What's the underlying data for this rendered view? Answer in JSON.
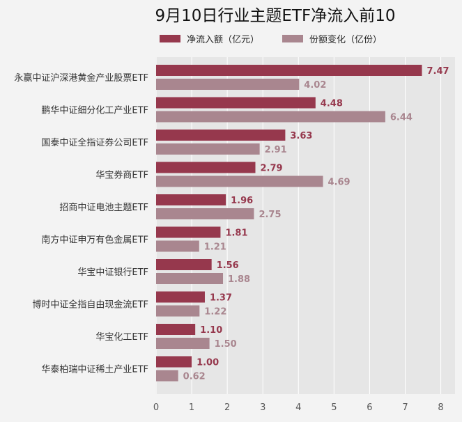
{
  "colors": {
    "series1": "#96384d",
    "series2": "#a9868f",
    "plot_bg": "#e6e6e6",
    "page_bg": "#f3f3f3",
    "grid": "#ffffff"
  },
  "chart_data": {
    "type": "bar",
    "orientation": "horizontal",
    "title": "9月10日行业主题ETF净流入前10",
    "legend_position": "top",
    "grid": true,
    "xlim": [
      0,
      8.4
    ],
    "xticks": [
      "0",
      "1",
      "2",
      "3",
      "4",
      "5",
      "6",
      "7",
      "8"
    ],
    "categories": [
      "永赢中证沪深港黄金产业股票ETF",
      "鹏华中证细分化工产业ETF",
      "国泰中证全指证券公司ETF",
      "华宝券商ETF",
      "招商中证电池主题ETF",
      "南方中证申万有色金属ETF",
      "华宝中证银行ETF",
      "博时中证全指自由现金流ETF",
      "华宝化工ETF",
      "华泰柏瑞中证稀土产业ETF"
    ],
    "series": [
      {
        "name": "净流入额（亿元）",
        "values": [
          7.47,
          4.48,
          3.63,
          2.79,
          1.96,
          1.81,
          1.56,
          1.37,
          1.1,
          1.0
        ],
        "labels": [
          "7.47",
          "4.48",
          "3.63",
          "2.79",
          "1.96",
          "1.81",
          "1.56",
          "1.37",
          "1.10",
          "1.00"
        ]
      },
      {
        "name": "份额变化（亿份）",
        "values": [
          4.02,
          6.44,
          2.91,
          4.69,
          2.75,
          1.21,
          1.88,
          1.22,
          1.5,
          0.62
        ],
        "labels": [
          "4.02",
          "6.44",
          "2.91",
          "4.69",
          "2.75",
          "1.21",
          "1.88",
          "1.22",
          "1.50",
          "0.62"
        ]
      }
    ]
  }
}
